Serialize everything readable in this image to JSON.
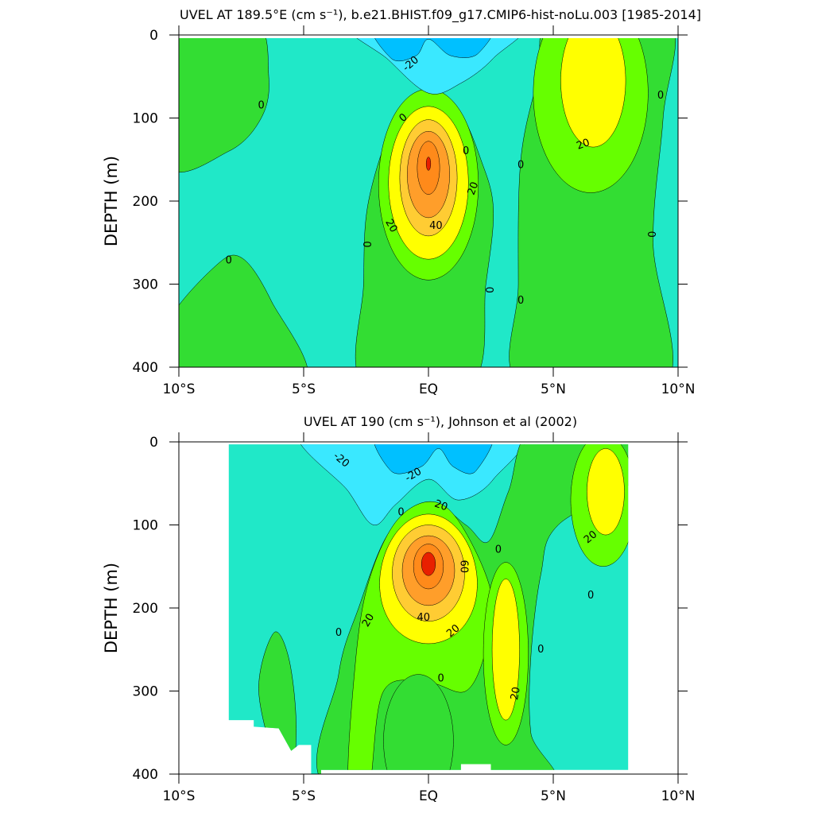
{
  "chart_data": [
    {
      "type": "contour",
      "title": "UVEL AT 189.5°E (cm s⁻¹), b.e21.BHIST.f09_g17.CMIP6-hist-noLu.003 [1985-2014]",
      "ylabel": "DEPTH (m)",
      "xlim": [
        -10,
        10
      ],
      "xticks": [
        {
          "value": -10,
          "label": "10°S"
        },
        {
          "value": -5,
          "label": "5°S"
        },
        {
          "value": 0,
          "label": "EQ"
        },
        {
          "value": 5,
          "label": "5°N"
        },
        {
          "value": 10,
          "label": "10°N"
        }
      ],
      "ylim": [
        0,
        400
      ],
      "yticks": [
        0,
        100,
        200,
        300,
        400
      ],
      "y_inverted": true,
      "background_color": "#20e8c8",
      "levels": [
        -20,
        -10,
        0,
        10,
        20,
        30,
        40,
        50,
        60
      ],
      "colors": [
        "#00c0ff",
        "#3ae8ff",
        "#33dd33",
        "#66ff00",
        "#ffff00",
        "#ffcc33",
        "#ff9e2a",
        "#ff8a1a",
        "#e82000"
      ],
      "contour_labels": [
        -20,
        0,
        0,
        0,
        0,
        0,
        0,
        0,
        0,
        0,
        0,
        20,
        20,
        20,
        40
      ]
    },
    {
      "type": "contour",
      "title": "UVEL AT 190 (cm s⁻¹), Johnson et al (2002)",
      "ylabel": "DEPTH (m)",
      "xlim": [
        -10,
        10
      ],
      "xticks": [
        {
          "value": -10,
          "label": "10°S"
        },
        {
          "value": -5,
          "label": "5°S"
        },
        {
          "value": 0,
          "label": "EQ"
        },
        {
          "value": 5,
          "label": "5°N"
        },
        {
          "value": 10,
          "label": "10°N"
        }
      ],
      "ylim": [
        0,
        400
      ],
      "yticks": [
        0,
        100,
        200,
        300,
        400
      ],
      "y_inverted": true,
      "background_color": "#20e8c8",
      "levels": [
        -20,
        -10,
        0,
        10,
        20,
        30,
        40,
        50,
        60
      ],
      "colors": [
        "#00c0ff",
        "#3ae8ff",
        "#33dd33",
        "#66ff00",
        "#ffff00",
        "#ffcc33",
        "#ff9e2a",
        "#ff8a1a",
        "#e82000"
      ],
      "contour_labels": [
        -20,
        -20,
        0,
        0,
        0,
        0,
        0,
        0,
        20,
        20,
        20,
        20,
        20,
        40,
        60
      ]
    }
  ]
}
